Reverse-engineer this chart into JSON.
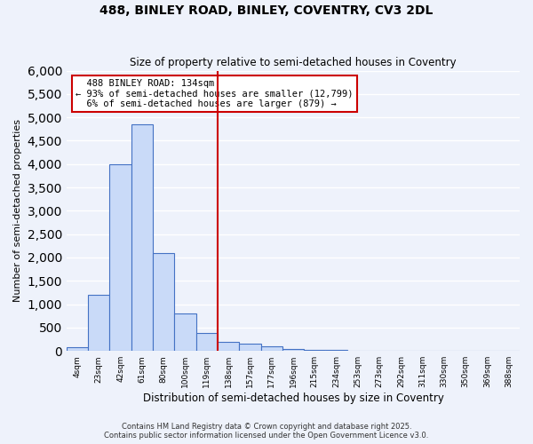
{
  "title_line1": "488, BINLEY ROAD, BINLEY, COVENTRY, CV3 2DL",
  "title_line2": "Size of property relative to semi-detached houses in Coventry",
  "xlabel": "Distribution of semi-detached houses by size in Coventry",
  "ylabel": "Number of semi-detached properties",
  "bar_labels": [
    "4sqm",
    "23sqm",
    "42sqm",
    "61sqm",
    "80sqm",
    "100sqm",
    "119sqm",
    "138sqm",
    "157sqm",
    "177sqm",
    "196sqm",
    "215sqm",
    "234sqm",
    "253sqm",
    "273sqm",
    "292sqm",
    "311sqm",
    "330sqm",
    "350sqm",
    "369sqm",
    "388sqm"
  ],
  "bar_values": [
    75,
    1200,
    4000,
    4850,
    2100,
    800,
    380,
    190,
    150,
    100,
    50,
    30,
    20,
    10,
    5,
    3,
    2,
    2,
    1,
    1,
    0
  ],
  "bar_color": "#c9daf8",
  "bar_edge_color": "#4472c4",
  "property_size": 134,
  "property_label": "488 BINLEY ROAD: 134sqm",
  "pct_smaller": 93,
  "n_smaller": 12799,
  "pct_larger": 6,
  "n_larger": 879,
  "vline_x_index": 7,
  "ylim": [
    0,
    6000
  ],
  "annotation_box_color": "#cc0000",
  "footer_line1": "Contains HM Land Registry data © Crown copyright and database right 2025.",
  "footer_line2": "Contains public sector information licensed under the Open Government Licence v3.0.",
  "bg_color": "#eef2fb",
  "grid_color": "#ffffff"
}
